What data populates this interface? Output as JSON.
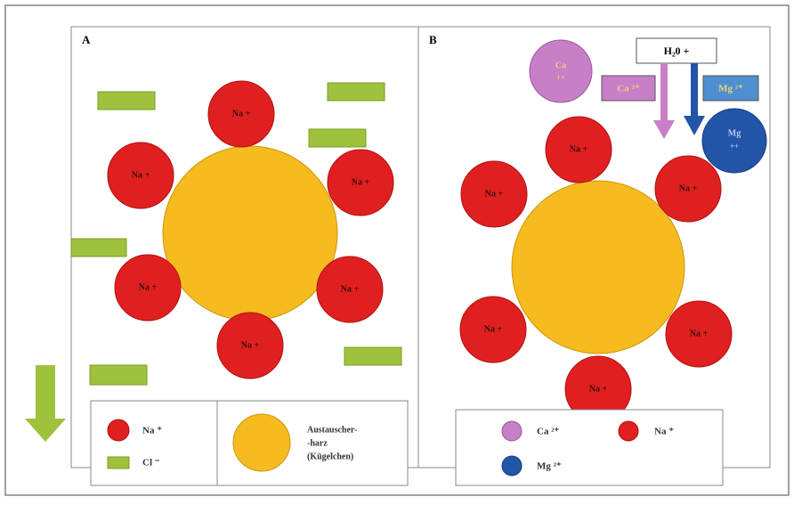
{
  "panel_a": {
    "label": "A",
    "ions": [
      "Na +",
      "Na +",
      "Na +",
      "Na +",
      "Na +",
      "Na +"
    ],
    "legend": {
      "na": "Na ⁺",
      "cl": "Cl ⁻",
      "resin": [
        "Austauscher-",
        "-harz",
        "(Kügelchen)"
      ]
    }
  },
  "panel_b": {
    "label": "B",
    "ions": [
      "Na +",
      "Na +",
      "Na +",
      "Na +",
      "Na +",
      "Na +"
    ],
    "water": "H₂0 +",
    "ca_ball": [
      "Ca",
      "++"
    ],
    "mg_ball": [
      "Mg",
      "++"
    ],
    "ca_tag": "Ca ²⁺",
    "mg_tag": "Mg ²⁺",
    "legend": {
      "ca": "Ca ²⁺",
      "na": "Na ⁺",
      "mg": "Mg ²⁺"
    }
  }
}
